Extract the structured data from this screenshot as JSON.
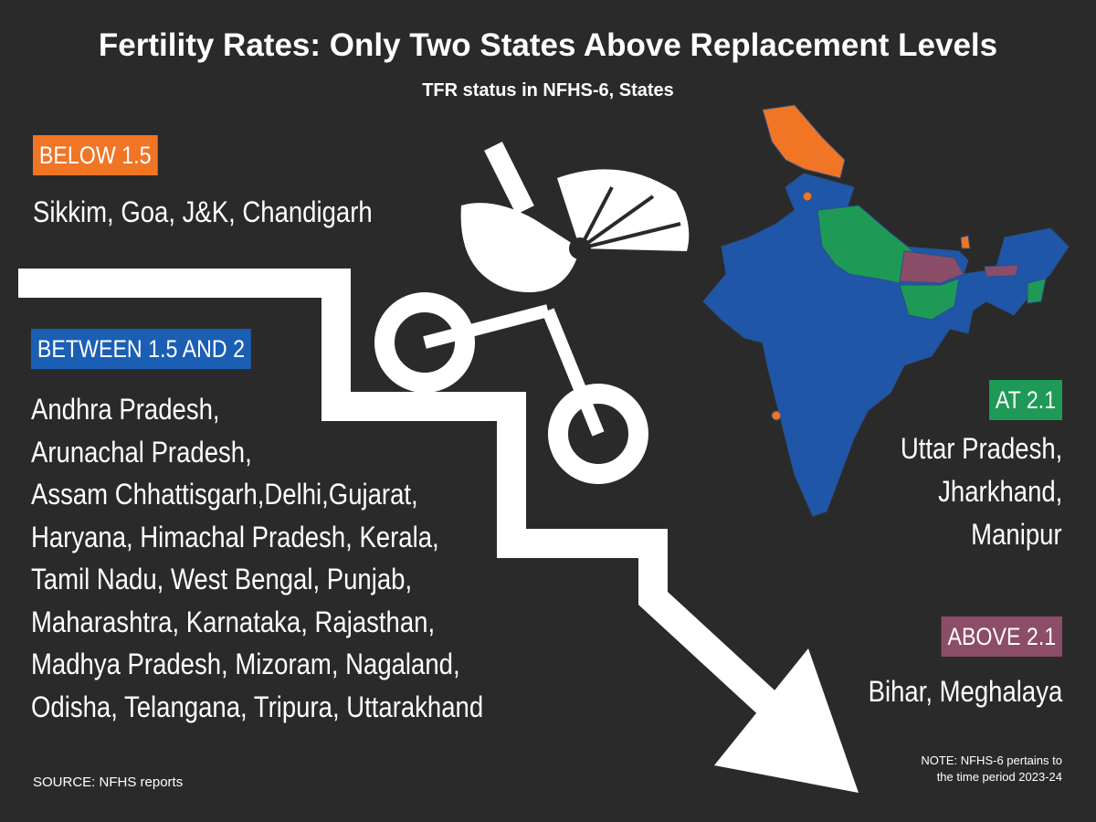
{
  "header": {
    "title": "Fertility Rates: Only Two States Above Replacement Levels",
    "subtitle": "TFR status in NFHS-6, States"
  },
  "groups": [
    {
      "label": "BELOW 1.5",
      "lines": [
        "Sikkim, Goa, J&K, Chandigarh"
      ]
    },
    {
      "label": "BETWEEN 1.5 AND 2",
      "lines": [
        "Andhra Pradesh,",
        "Arunachal Pradesh,",
        "Assam Chhattisgarh,Delhi,Gujarat,",
        "Haryana, Himachal Pradesh, Kerala,",
        "Tamil Nadu, West Bengal, Punjab,",
        "Maharashtra, Karnataka, Rajasthan,",
        "Madhya Pradesh, Mizoram, Nagaland,",
        "Odisha, Telangana, Tripura, Uttarakhand"
      ]
    },
    {
      "label": "AT 2.1",
      "lines": [
        "Uttar Pradesh,",
        "Jharkhand,",
        "Manipur"
      ]
    },
    {
      "label": "ABOVE 2.1",
      "lines": [
        "Bihar, Meghalaya"
      ]
    }
  ],
  "footer": {
    "source": "SOURCE: NFHS reports",
    "note": [
      "NOTE: NFHS-6 pertains to",
      "the time period 2023-24"
    ]
  }
}
